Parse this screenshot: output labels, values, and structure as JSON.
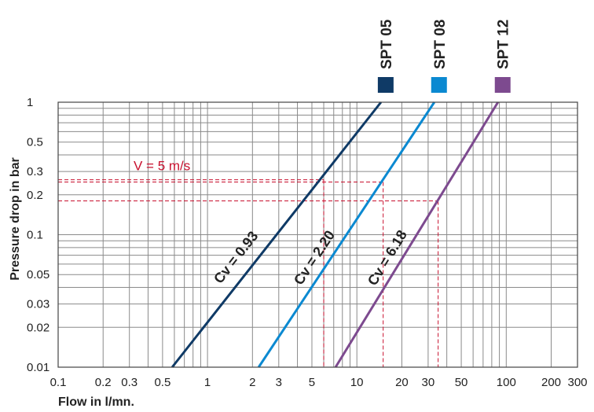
{
  "chart_data": {
    "type": "line",
    "xlabel": "Flow in l/mn.",
    "ylabel": "Pressure drop in bar",
    "x_scale": "log",
    "y_scale": "log",
    "xlim": [
      0.1,
      300
    ],
    "ylim": [
      0.01,
      1
    ],
    "grid": true,
    "x_ticks": [
      {
        "v": 0.1,
        "label": "0.1"
      },
      {
        "v": 0.2,
        "label": "0.2"
      },
      {
        "v": 0.3,
        "label": "0.3"
      },
      {
        "v": 0.5,
        "label": "0.5"
      },
      {
        "v": 1,
        "label": "1"
      },
      {
        "v": 2,
        "label": "2"
      },
      {
        "v": 3,
        "label": "3"
      },
      {
        "v": 5,
        "label": "5"
      },
      {
        "v": 10,
        "label": "10"
      },
      {
        "v": 20,
        "label": "20"
      },
      {
        "v": 30,
        "label": "30"
      },
      {
        "v": 50,
        "label": "50"
      },
      {
        "v": 100,
        "label": "100"
      },
      {
        "v": 200,
        "label": "200"
      },
      {
        "v": 300,
        "label": "300"
      }
    ],
    "y_ticks": [
      {
        "v": 0.01,
        "label": "0.01"
      },
      {
        "v": 0.02,
        "label": "0.02"
      },
      {
        "v": 0.03,
        "label": "0.03"
      },
      {
        "v": 0.05,
        "label": "0.05"
      },
      {
        "v": 0.1,
        "label": "0.1"
      },
      {
        "v": 0.2,
        "label": "0.2"
      },
      {
        "v": 0.3,
        "label": "0.3"
      },
      {
        "v": 0.5,
        "label": "0.5"
      },
      {
        "v": 1,
        "label": "1"
      }
    ],
    "x_grid": [
      0.1,
      0.2,
      0.3,
      0.4,
      0.5,
      0.6,
      0.7,
      0.8,
      0.9,
      1,
      2,
      3,
      4,
      5,
      6,
      7,
      8,
      9,
      10,
      20,
      30,
      40,
      50,
      60,
      70,
      80,
      90,
      100,
      200,
      300
    ],
    "y_grid": [
      0.01,
      0.02,
      0.03,
      0.04,
      0.05,
      0.06,
      0.07,
      0.08,
      0.09,
      0.1,
      0.2,
      0.3,
      0.4,
      0.5,
      0.6,
      0.7,
      0.8,
      0.9,
      1
    ],
    "legend_placement": "top-right, vertical labels above color squares",
    "series": [
      {
        "name": "SPT 05",
        "color": "#0f3a66",
        "cv_label": "Cv = 0.93",
        "points": [
          [
            0.58,
            0.01
          ],
          [
            14.5,
            1
          ]
        ]
      },
      {
        "name": "SPT 08",
        "color": "#0b89d1",
        "cv_label": "Cv = 2.20",
        "points": [
          [
            2.2,
            0.01
          ],
          [
            33,
            1
          ]
        ]
      },
      {
        "name": "SPT 12",
        "color": "#7d4a8f",
        "cv_label": "Cv = 6.18",
        "points": [
          [
            7.2,
            0.01
          ],
          [
            88,
            1
          ]
        ]
      }
    ],
    "annotation": {
      "text": "V = 5 m/s",
      "color": "#c8102e",
      "points": [
        {
          "x": 6,
          "y": 0.26
        },
        {
          "x": 15,
          "y": 0.25
        },
        {
          "x": 35,
          "y": 0.18
        }
      ]
    }
  }
}
